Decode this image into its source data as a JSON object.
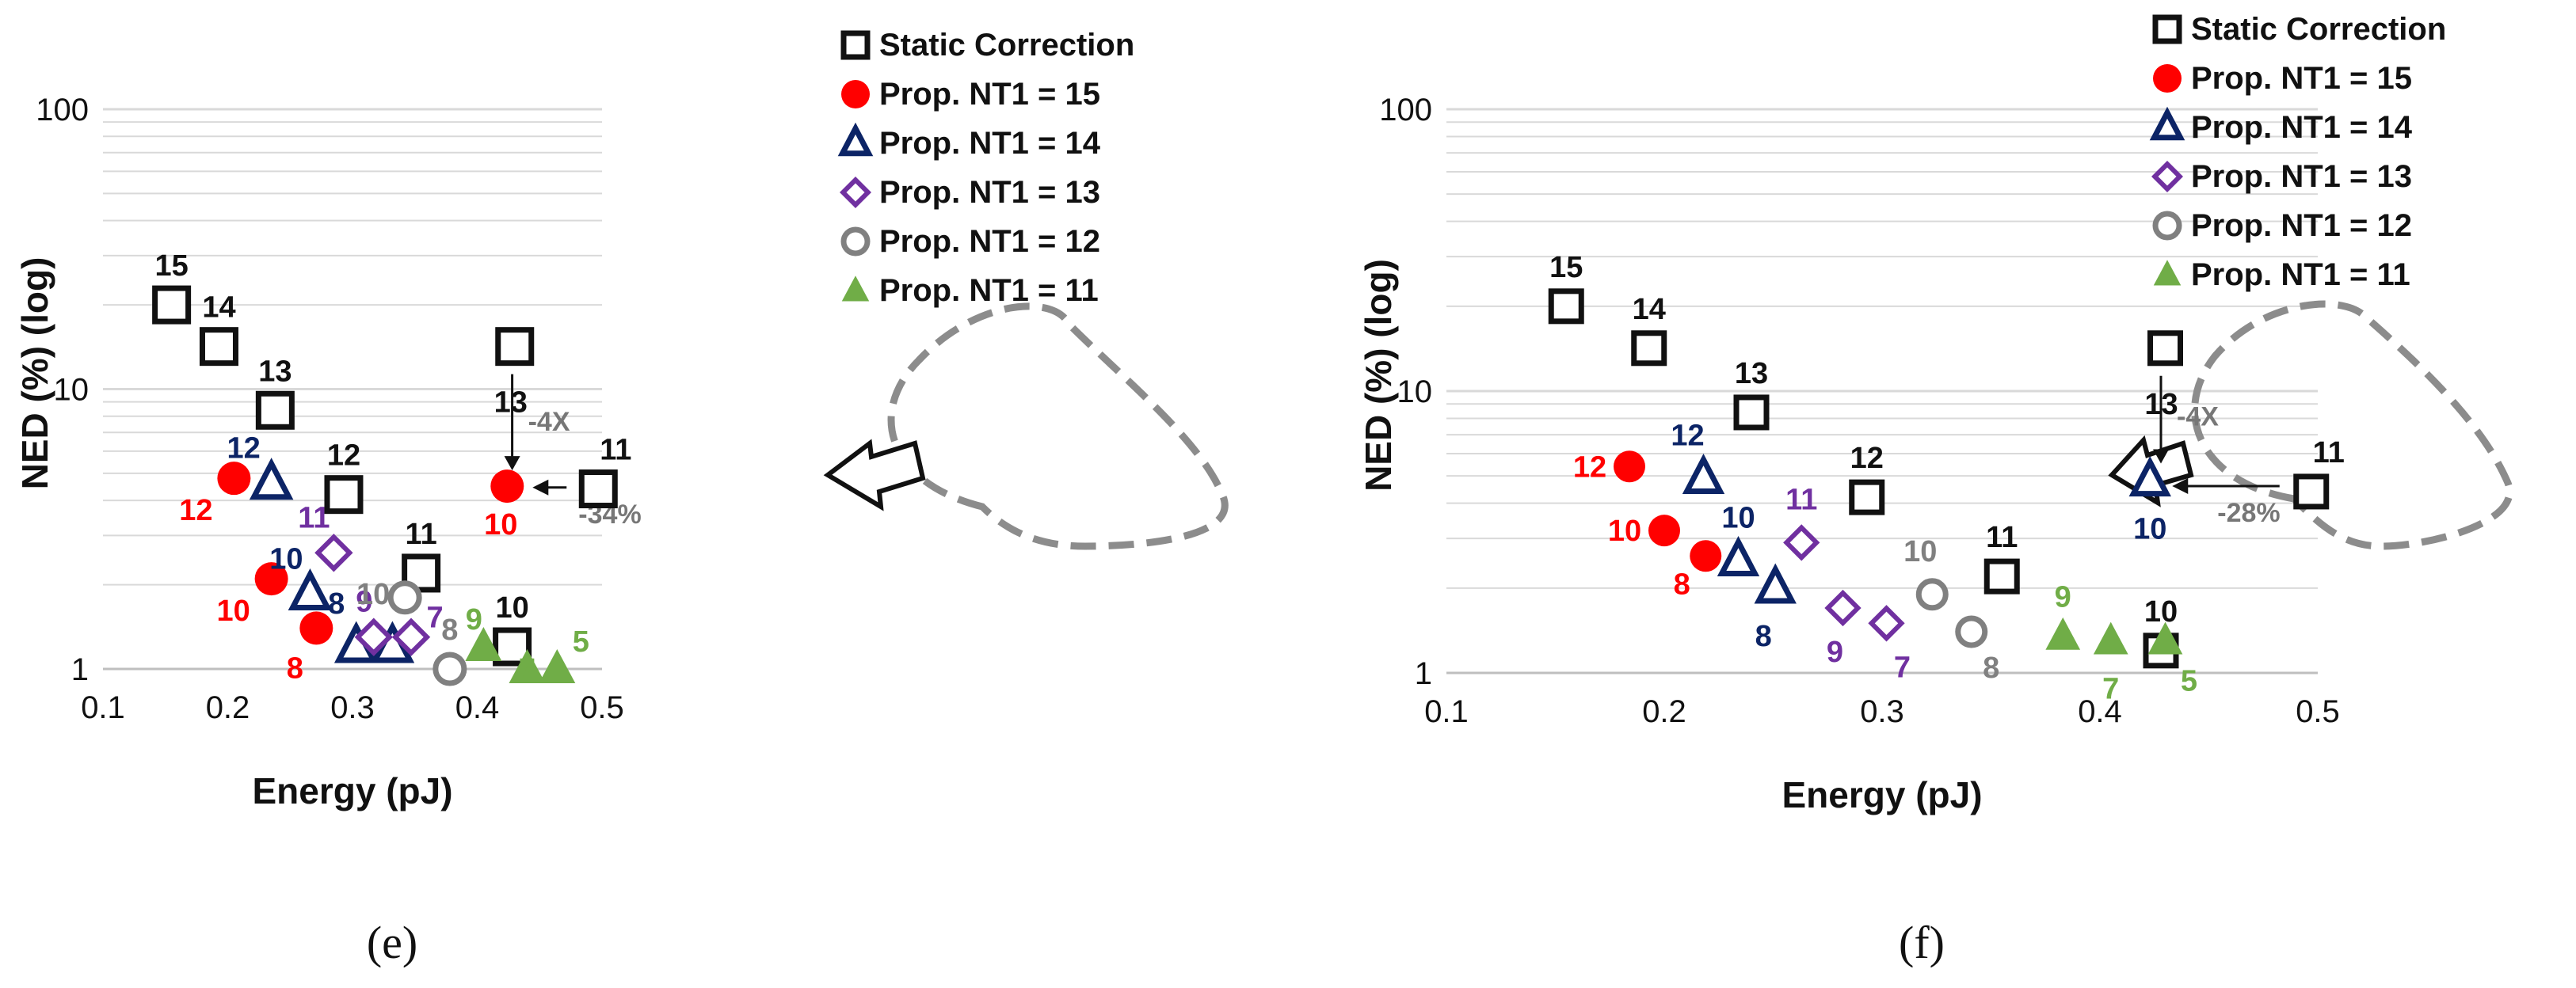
{
  "colors": {
    "Static Correction": "#111111",
    "Prop. NT1 = 15": "#ff0000",
    "Prop. NT1 = 14": "#0c2466",
    "Prop. NT1 = 13": "#7030a0",
    "Prop. NT1 = 12": "#808080",
    "Prop. NT1 = 11": "#70ad47",
    "grid": "#d9d9d9",
    "dashed": "#8c8c8c"
  },
  "markers": {
    "Static Correction": "square",
    "Prop. NT1 = 15": "circle-filled",
    "Prop. NT1 = 14": "triangle-open",
    "Prop. NT1 = 13": "diamond-open",
    "Prop. NT1 = 12": "circle-open",
    "Prop. NT1 = 11": "triangle-filled"
  },
  "chart_data": [
    {
      "type": "scatter",
      "panel_label": "(e)",
      "xlabel": "Energy (pJ)",
      "ylabel": "NED (%) (log)",
      "xlim": [
        0.1,
        0.5
      ],
      "ylim": [
        1,
        100
      ],
      "yscale": "log",
      "xticks": [
        "0.1",
        "0.2",
        "0.3",
        "0.4",
        "0.5"
      ],
      "yticks": [
        "1",
        "10",
        "100"
      ],
      "legend_position": "top-right",
      "series": [
        {
          "name": "Static Correction",
          "points": [
            {
              "x": 0.155,
              "y": 20,
              "label": "15"
            },
            {
              "x": 0.193,
              "y": 14.2,
              "label": "14"
            },
            {
              "x": 0.238,
              "y": 8.4,
              "label": "13"
            },
            {
              "x": 0.293,
              "y": 4.2,
              "label": "12"
            },
            {
              "x": 0.355,
              "y": 2.2,
              "label": "11"
            },
            {
              "x": 0.43,
              "y": 14.2,
              "label": "13"
            },
            {
              "x": 0.497,
              "y": 4.4,
              "label": "11"
            },
            {
              "x": 0.428,
              "y": 1.2,
              "label": "10"
            }
          ]
        },
        {
          "name": "Prop. NT1 = 15",
          "points": [
            {
              "x": 0.205,
              "y": 4.8,
              "label": "12"
            },
            {
              "x": 0.235,
              "y": 2.1,
              "label": "10"
            },
            {
              "x": 0.271,
              "y": 1.4,
              "label": "8"
            },
            {
              "x": 0.424,
              "y": 4.5,
              "label": "10"
            }
          ]
        },
        {
          "name": "Prop. NT1 = 14",
          "points": [
            {
              "x": 0.235,
              "y": 4.6,
              "label": "12"
            },
            {
              "x": 0.266,
              "y": 1.85,
              "label": "10"
            },
            {
              "x": 0.303,
              "y": 1.2,
              "label": "8"
            },
            {
              "x": 0.332,
              "y": 1.2,
              "label": ""
            }
          ]
        },
        {
          "name": "Prop. NT1 = 13",
          "points": [
            {
              "x": 0.285,
              "y": 2.6,
              "label": "11"
            },
            {
              "x": 0.317,
              "y": 1.3,
              "label": "9"
            },
            {
              "x": 0.347,
              "y": 1.3,
              "label": "7"
            }
          ]
        },
        {
          "name": "Prop. NT1 = 12",
          "points": [
            {
              "x": 0.342,
              "y": 1.8,
              "label": "10"
            },
            {
              "x": 0.378,
              "y": 1.0,
              "label": "8"
            }
          ]
        },
        {
          "name": "Prop. NT1 = 11",
          "points": [
            {
              "x": 0.405,
              "y": 1.2,
              "label": "9"
            },
            {
              "x": 0.44,
              "y": 1.0,
              "label": "7"
            },
            {
              "x": 0.464,
              "y": 1.0,
              "label": "5"
            }
          ]
        }
      ],
      "annotations": [
        {
          "text": "-4X"
        },
        {
          "text": "-34%"
        }
      ]
    },
    {
      "type": "scatter",
      "panel_label": "(f)",
      "xlabel": "Energy (pJ)",
      "ylabel": "NED (%) (log)",
      "xlim": [
        0.1,
        0.5
      ],
      "ylim": [
        1,
        100
      ],
      "yscale": "log",
      "xticks": [
        "0.1",
        "0.2",
        "0.3",
        "0.4",
        "0.5"
      ],
      "yticks": [
        "1",
        "10",
        "100"
      ],
      "legend_position": "top-right",
      "series": [
        {
          "name": "Static Correction",
          "points": [
            {
              "x": 0.155,
              "y": 20,
              "label": "15"
            },
            {
              "x": 0.193,
              "y": 14.2,
              "label": "14"
            },
            {
              "x": 0.24,
              "y": 8.4,
              "label": "13"
            },
            {
              "x": 0.293,
              "y": 4.2,
              "label": "12"
            },
            {
              "x": 0.355,
              "y": 2.2,
              "label": "11"
            },
            {
              "x": 0.43,
              "y": 14.2,
              "label": "13"
            },
            {
              "x": 0.497,
              "y": 4.4,
              "label": "11"
            },
            {
              "x": 0.428,
              "y": 1.2,
              "label": "10"
            }
          ]
        },
        {
          "name": "Prop. NT1 = 15",
          "points": [
            {
              "x": 0.184,
              "y": 5.4,
              "label": "12"
            },
            {
              "x": 0.2,
              "y": 3.2,
              "label": "10"
            },
            {
              "x": 0.219,
              "y": 2.6,
              "label": "8"
            }
          ]
        },
        {
          "name": "Prop. NT1 = 14",
          "points": [
            {
              "x": 0.218,
              "y": 4.9,
              "label": "12"
            },
            {
              "x": 0.234,
              "y": 2.5,
              "label": "10"
            },
            {
              "x": 0.251,
              "y": 2.0,
              "label": "8"
            },
            {
              "x": 0.423,
              "y": 4.8,
              "label": "10"
            }
          ]
        },
        {
          "name": "Prop. NT1 = 13",
          "points": [
            {
              "x": 0.263,
              "y": 2.9,
              "label": "11"
            },
            {
              "x": 0.282,
              "y": 1.7,
              "label": "9"
            },
            {
              "x": 0.302,
              "y": 1.5,
              "label": "7"
            }
          ]
        },
        {
          "name": "Prop. NT1 = 12",
          "points": [
            {
              "x": 0.323,
              "y": 1.9,
              "label": "10"
            },
            {
              "x": 0.341,
              "y": 1.4,
              "label": "8"
            }
          ]
        },
        {
          "name": "Prop. NT1 = 11",
          "points": [
            {
              "x": 0.383,
              "y": 1.35,
              "label": "9"
            },
            {
              "x": 0.405,
              "y": 1.3,
              "label": "7"
            },
            {
              "x": 0.43,
              "y": 1.3,
              "label": "5"
            }
          ]
        }
      ],
      "annotations": [
        {
          "text": "-4X"
        },
        {
          "text": "-28%"
        }
      ]
    }
  ]
}
